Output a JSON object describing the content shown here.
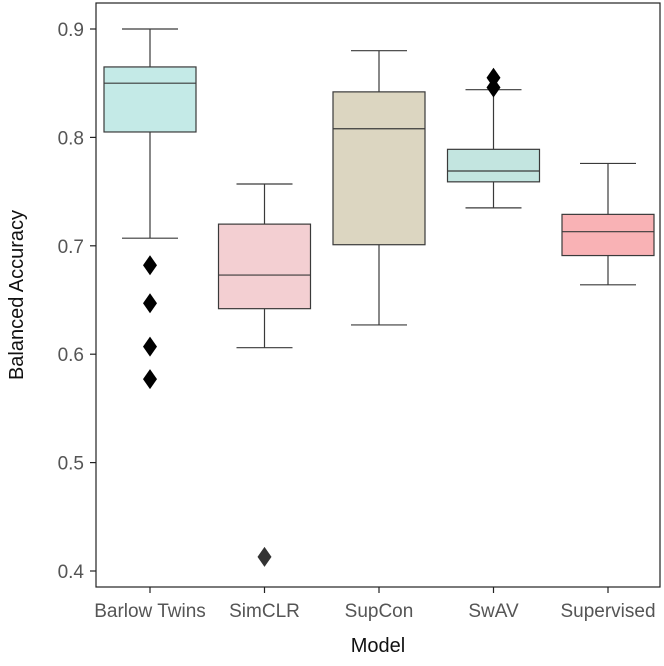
{
  "chart_data": {
    "type": "box",
    "title": "",
    "xlabel": "Model",
    "ylabel": "Balanced Accuracy",
    "ylim": [
      0.385,
      0.925
    ],
    "yticks": [
      0.4,
      0.5,
      0.6,
      0.7,
      0.8,
      0.9
    ],
    "ytick_labels": [
      "0.4",
      "0.5",
      "0.6",
      "0.7",
      "0.8",
      "0.9"
    ],
    "grid": false,
    "categories": [
      "Barlow Twins",
      "SimCLR",
      "SupCon",
      "SwAV",
      "Supervised"
    ],
    "series": [
      {
        "category": "Barlow Twins",
        "whisker_low": 0.707,
        "q1": 0.805,
        "median": 0.85,
        "q3": 0.865,
        "whisker_high": 0.9,
        "outliers": [
          0.682,
          0.647,
          0.607,
          0.577
        ],
        "color": "#c4eae7"
      },
      {
        "category": "SimCLR",
        "whisker_low": 0.606,
        "q1": 0.642,
        "median": 0.673,
        "q3": 0.72,
        "whisker_high": 0.757,
        "outliers": [
          0.413
        ],
        "color": "#f3cfd2"
      },
      {
        "category": "SupCon",
        "whisker_low": 0.627,
        "q1": 0.701,
        "median": 0.808,
        "q3": 0.842,
        "whisker_high": 0.88,
        "outliers": [],
        "color": "#dcd6c1"
      },
      {
        "category": "SwAV",
        "whisker_low": 0.735,
        "q1": 0.759,
        "median": 0.769,
        "q3": 0.789,
        "whisker_high": 0.844,
        "outliers": [
          0.855,
          0.846
        ],
        "color": "#c3e5e0"
      },
      {
        "category": "Supervised",
        "whisker_low": 0.664,
        "q1": 0.691,
        "median": 0.713,
        "q3": 0.729,
        "whisker_high": 0.776,
        "outliers": [],
        "color": "#f9b2b5"
      }
    ],
    "outlier_colors": [
      "#000000",
      "#333333",
      "#000000",
      "#000000",
      "#000000"
    ]
  }
}
